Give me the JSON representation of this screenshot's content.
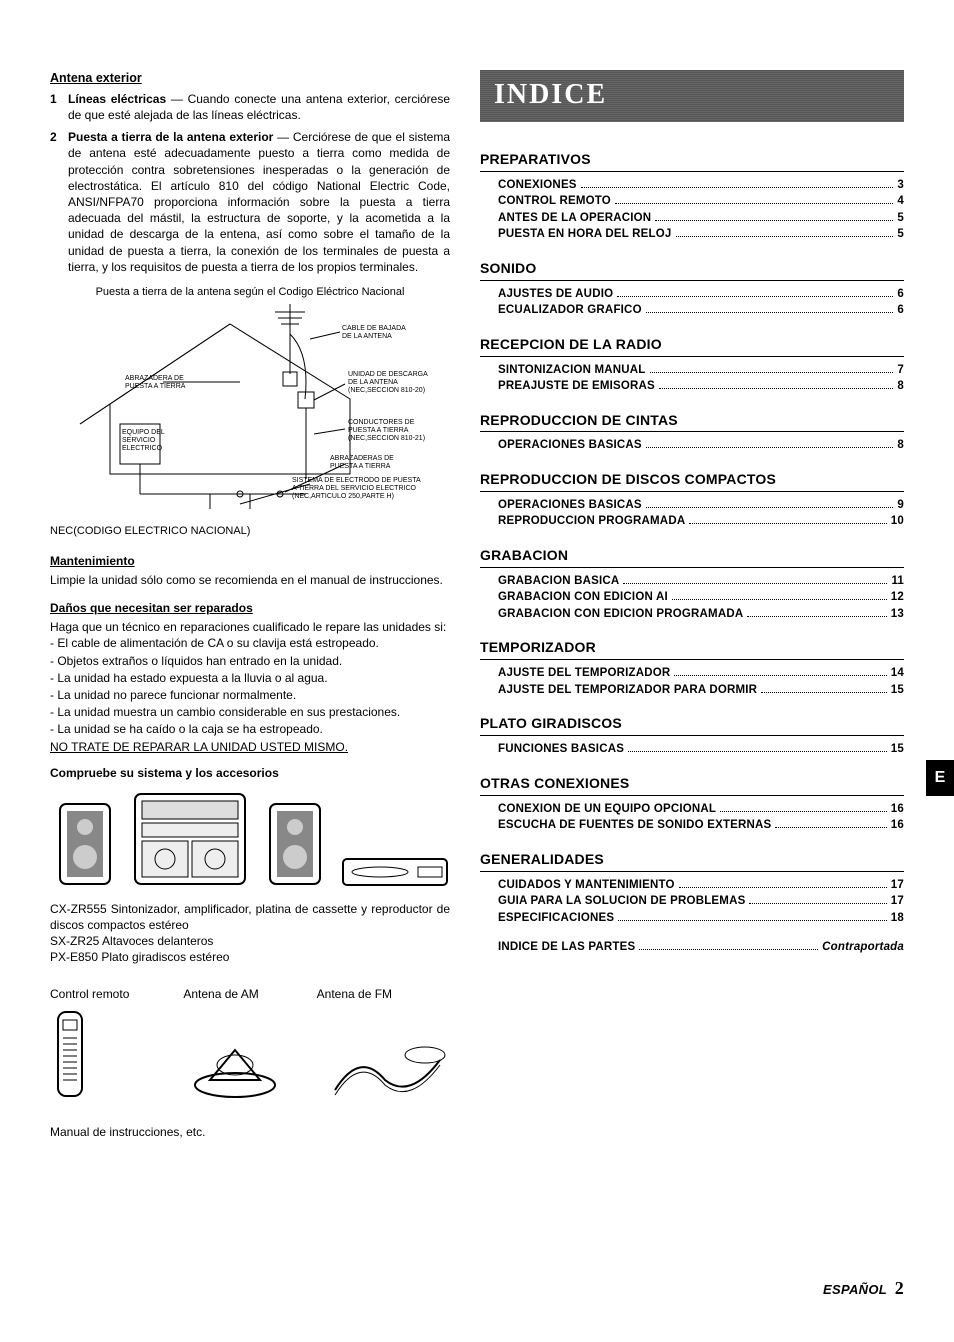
{
  "left": {
    "h_antena": "Antena exterior",
    "items": [
      {
        "num": "1",
        "label": "Líneas eléctricas",
        "text": " — Cuando conecte una antena exterior, cerciórese de que esté alejada de las líneas eléctricas."
      },
      {
        "num": "2",
        "label": "Puesta a tierra de la antena exterior",
        "text": " — Cerciórese de que el sistema de antena esté adecuadamente puesto a tierra como medida de protección contra sobretensiones inesperadas o la generación de electrostática. El artículo 810 del código National Electric Code, ANSI/NFPA70 proporciona información sobre la puesta a tierra adecuada del mástil, la estructura de soporte, y la acometida a la unidad de descarga de la entena, así como sobre el tamaño de la unidad de puesta a tierra, la conexión de los terminales de puesta a tierra, y los requisitos de puesta a tierra de los propios terminales."
      }
    ],
    "fig_caption": "Puesta a tierra de la antena según el Codigo Eléctrico Nacional",
    "fig_labels": {
      "cable": "CABLE DE BAJADA DE LA ANTENA",
      "abraz": "ABRAZADERA DE PUESTA A TIERRA",
      "unidad": "UNIDAD DE DESCARGA DE LA ANTENA (NEC,SECCION 810-20)",
      "equipo": "EQUIPO DEL SERVICIO ELECTRICO",
      "conduct": "CONDUCTORES DE PUESTA A TIERRA (NEC,SECCION 810-21)",
      "abraz2": "ABRAZADERAS DE PUESTA A TIERRA",
      "sistema": "SISTEMA DE ELECTRODO DE PUESTA A TIERRA DEL SERVICIO ELECTRICO (NEC,ARTICULO 250,PARTE H)",
      "nec": "NEC(CODIGO ELECTRICO NACIONAL)"
    },
    "h_mant": "Mantenimiento",
    "mant_text": "Limpie la unidad sólo como se recomienda en el manual de instrucciones.",
    "h_danos": "Daños que necesitan ser reparados",
    "danos_intro": "Haga que un técnico en reparaciones cualificado le repare las unidades si:",
    "danos_items": [
      "El cable de alimentación de CA o su clavija está estropeado.",
      "Objetos extraños o líquidos han entrado en la unidad.",
      "La unidad ha estado expuesta a la lluvia o al agua.",
      "La unidad no parece funcionar normalmente.",
      "La unidad muestra un cambio considerable en sus prestaciones.",
      "La unidad se ha caído o la caja se ha estropeado."
    ],
    "danos_warn": "NO TRATE DE REPARAR LA UNIDAD USTED MISMO.",
    "h_compruebe": "Compruebe su sistema y los accesorios",
    "acc_text1": "CX-ZR555 Sintonizador, amplificador, platina de cassette y reproductor de discos compactos estéreo",
    "acc_text2": "SX-ZR25 Altavoces delanteros",
    "acc_text3": "PX-E850 Plato giradiscos estéreo",
    "acc_labels": [
      "Control remoto",
      "Antena de AM",
      "Antena de FM"
    ],
    "manual_note": "Manual de instrucciones, etc."
  },
  "right": {
    "banner": "INDICE",
    "tab": "E",
    "sections": [
      {
        "h": "PREPARATIVOS",
        "items": [
          {
            "l": "CONEXIONES",
            "p": "3"
          },
          {
            "l": "CONTROL REMOTO",
            "p": "4"
          },
          {
            "l": "ANTES DE LA OPERACION",
            "p": "5"
          },
          {
            "l": "PUESTA EN HORA DEL RELOJ",
            "p": "5"
          }
        ]
      },
      {
        "h": "SONIDO",
        "items": [
          {
            "l": "AJUSTES DE AUDIO",
            "p": "6"
          },
          {
            "l": "ECUALIZADOR GRAFICO",
            "p": "6"
          }
        ]
      },
      {
        "h": "RECEPCION DE LA RADIO",
        "items": [
          {
            "l": "SINTONIZACION MANUAL",
            "p": "7"
          },
          {
            "l": "PREAJUSTE DE EMISORAS",
            "p": "8"
          }
        ]
      },
      {
        "h": "REPRODUCCION DE CINTAS",
        "items": [
          {
            "l": "OPERACIONES BASICAS",
            "p": "8"
          }
        ]
      },
      {
        "h": "REPRODUCCION DE DISCOS COMPACTOS",
        "items": [
          {
            "l": "OPERACIONES BASICAS",
            "p": "9"
          },
          {
            "l": "REPRODUCCION PROGRAMADA",
            "p": "10"
          }
        ]
      },
      {
        "h": "GRABACION",
        "items": [
          {
            "l": "GRABACION BASICA",
            "p": "11"
          },
          {
            "l": "GRABACION CON EDICION AI",
            "p": "12"
          },
          {
            "l": "GRABACION CON EDICION PROGRAMADA",
            "p": "13"
          }
        ]
      },
      {
        "h": "TEMPORIZADOR",
        "items": [
          {
            "l": "AJUSTE DEL TEMPORIZADOR",
            "p": "14"
          },
          {
            "l": "AJUSTE DEL TEMPORIZADOR PARA DORMIR",
            "p": "15"
          }
        ]
      },
      {
        "h": "PLATO GIRADISCOS",
        "items": [
          {
            "l": "FUNCIONES BASICAS",
            "p": "15"
          }
        ]
      },
      {
        "h": "OTRAS CONEXIONES",
        "items": [
          {
            "l": "CONEXION DE UN EQUIPO OPCIONAL",
            "p": "16"
          },
          {
            "l": "ESCUCHA DE FUENTES DE SONIDO EXTERNAS",
            "p": "16"
          }
        ]
      },
      {
        "h": "GENERALIDADES",
        "items": [
          {
            "l": "CUIDADOS Y MANTENIMIENTO",
            "p": "17"
          },
          {
            "l": "GUIA PARA LA SOLUCION DE PROBLEMAS",
            "p": "17"
          },
          {
            "l": "ESPECIFICACIONES",
            "p": "18"
          }
        ]
      }
    ],
    "final": {
      "l": "INDICE DE LAS PARTES",
      "p": "Contraportada"
    },
    "footer_lang": "ESPAÑOL",
    "footer_page": "2"
  }
}
